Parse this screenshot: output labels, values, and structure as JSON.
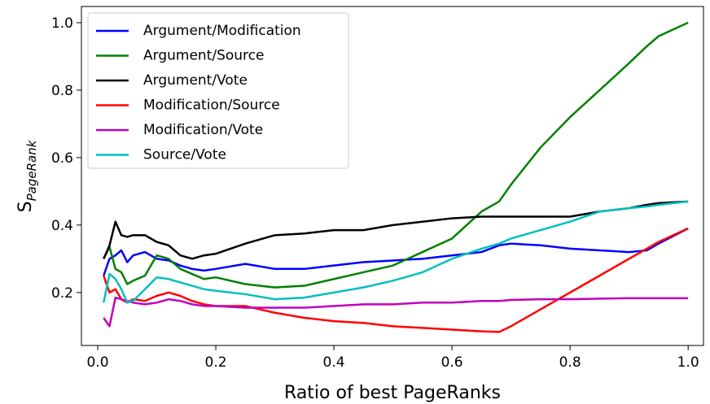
{
  "chart_data": {
    "type": "line",
    "xlabel": "Ratio of best PageRanks",
    "ylabel": "S",
    "ylabel_sub": "PageRank",
    "x": [
      0.01,
      0.02,
      0.03,
      0.04,
      0.05,
      0.06,
      0.08,
      0.1,
      0.12,
      0.14,
      0.16,
      0.18,
      0.2,
      0.25,
      0.3,
      0.35,
      0.4,
      0.45,
      0.5,
      0.55,
      0.6,
      0.65,
      0.68,
      0.7,
      0.75,
      0.8,
      0.85,
      0.9,
      0.93,
      0.95,
      1.0
    ],
    "series": [
      {
        "name": "Argument/Modification",
        "color": "#0000ff",
        "values": [
          0.25,
          0.3,
          0.31,
          0.325,
          0.29,
          0.31,
          0.32,
          0.3,
          0.295,
          0.28,
          0.27,
          0.265,
          0.27,
          0.285,
          0.27,
          0.27,
          0.28,
          0.29,
          0.295,
          0.3,
          0.31,
          0.32,
          0.34,
          0.345,
          0.34,
          0.33,
          0.325,
          0.32,
          0.325,
          0.345,
          0.39
        ]
      },
      {
        "name": "Argument/Source",
        "color": "#008000",
        "values": [
          0.3,
          0.335,
          0.27,
          0.26,
          0.225,
          0.235,
          0.25,
          0.31,
          0.3,
          0.27,
          0.255,
          0.24,
          0.245,
          0.225,
          0.215,
          0.22,
          0.24,
          0.26,
          0.28,
          0.32,
          0.36,
          0.44,
          0.47,
          0.52,
          0.63,
          0.72,
          0.8,
          0.88,
          0.93,
          0.96,
          1.0
        ]
      },
      {
        "name": "Argument/Vote",
        "color": "#000000",
        "values": [
          0.3,
          0.34,
          0.41,
          0.37,
          0.365,
          0.37,
          0.37,
          0.35,
          0.34,
          0.31,
          0.3,
          0.31,
          0.315,
          0.345,
          0.37,
          0.375,
          0.385,
          0.385,
          0.4,
          0.41,
          0.42,
          0.425,
          0.425,
          0.425,
          0.425,
          0.425,
          0.44,
          0.45,
          0.46,
          0.465,
          0.47
        ]
      },
      {
        "name": "Modification/Source",
        "color": "#ff0000",
        "values": [
          0.25,
          0.2,
          0.21,
          0.18,
          0.17,
          0.18,
          0.175,
          0.19,
          0.2,
          0.19,
          0.175,
          0.165,
          0.16,
          0.16,
          0.14,
          0.125,
          0.115,
          0.11,
          0.1,
          0.095,
          0.09,
          0.085,
          0.083,
          0.1,
          0.15,
          0.2,
          0.25,
          0.3,
          0.33,
          0.35,
          0.39
        ]
      },
      {
        "name": "Modification/Vote",
        "color": "#bf00bf",
        "values": [
          0.125,
          0.1,
          0.185,
          0.18,
          0.175,
          0.17,
          0.165,
          0.17,
          0.18,
          0.175,
          0.165,
          0.16,
          0.16,
          0.155,
          0.155,
          0.155,
          0.16,
          0.165,
          0.165,
          0.17,
          0.17,
          0.175,
          0.175,
          0.178,
          0.18,
          0.18,
          0.182,
          0.183,
          0.183,
          0.183,
          0.183
        ]
      },
      {
        "name": "Source/Vote",
        "color": "#00bfbf",
        "values": [
          0.17,
          0.255,
          0.24,
          0.21,
          0.17,
          0.175,
          0.21,
          0.245,
          0.24,
          0.23,
          0.22,
          0.21,
          0.205,
          0.195,
          0.18,
          0.185,
          0.2,
          0.215,
          0.235,
          0.26,
          0.3,
          0.33,
          0.345,
          0.36,
          0.385,
          0.41,
          0.44,
          0.45,
          0.455,
          0.46,
          0.47
        ]
      }
    ],
    "xlim": [
      -0.0276,
      1.026
    ],
    "ylim": [
      0.043,
      1.048
    ],
    "xticks": [
      {
        "value": 0,
        "label": "0.0"
      },
      0.2,
      0.4,
      0.6,
      0.8,
      {
        "value": 1,
        "label": "1.0"
      }
    ],
    "yticks": [
      0.2,
      0.4,
      0.6,
      0.8,
      {
        "value": 1,
        "label": "1.0"
      }
    ],
    "legend": "upper left",
    "grid": false
  }
}
